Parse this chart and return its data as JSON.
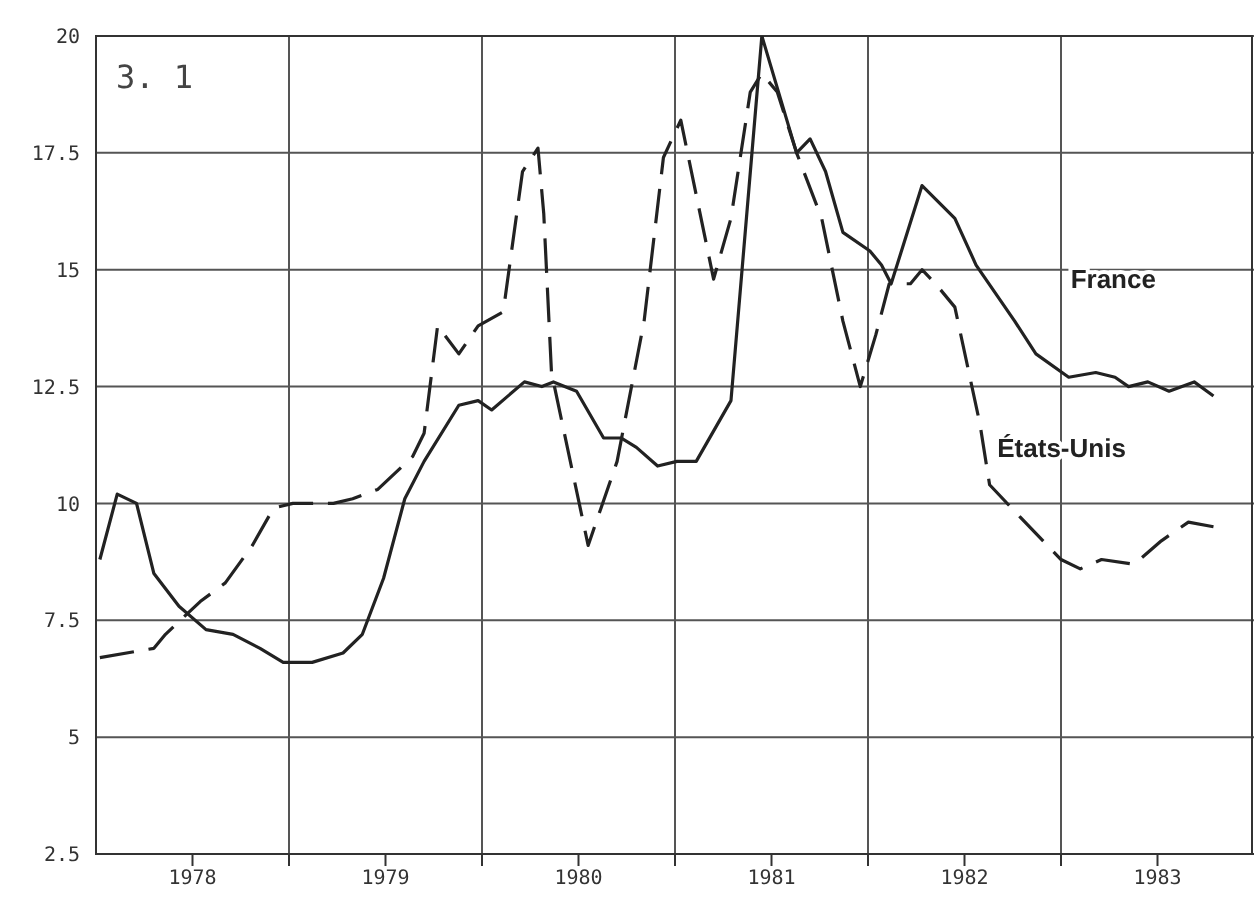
{
  "chart_data": {
    "type": "line",
    "annotations": [
      "3. 1"
    ],
    "xlim": [
      1978,
      1984
    ],
    "xticks": [
      {
        "value": 1978.5,
        "label": "1978"
      },
      {
        "value": 1979,
        "label": null
      },
      {
        "value": 1979.5,
        "label": "1979"
      },
      {
        "value": 1980,
        "label": null
      },
      {
        "value": 1980.5,
        "label": "1980"
      },
      {
        "value": 1981,
        "label": null
      },
      {
        "value": 1981.5,
        "label": "1981"
      },
      {
        "value": 1982,
        "label": null
      },
      {
        "value": 1982.5,
        "label": "1982"
      },
      {
        "value": 1983,
        "label": null
      },
      {
        "value": 1983.5,
        "label": "1983"
      }
    ],
    "ylim": [
      2.5,
      20
    ],
    "yticks": [
      2.5,
      5,
      7.5,
      10,
      12.5,
      15,
      17.5,
      20
    ],
    "grid": true,
    "series": [
      {
        "name": "France",
        "color": "#222222",
        "line_style": "solid",
        "x": [
          1978.02,
          1978.11,
          1978.21,
          1978.3,
          1978.43,
          1978.57,
          1978.71,
          1978.85,
          1978.97,
          1979.12,
          1979.28,
          1979.38,
          1979.49,
          1979.6,
          1979.7,
          1979.88,
          1979.98,
          1980.05,
          1980.22,
          1980.31,
          1980.37,
          1980.49,
          1980.63,
          1980.72,
          1980.8,
          1980.91,
          1981.01,
          1981.11,
          1981.29,
          1981.45,
          1981.63,
          1981.7,
          1981.78,
          1981.87,
          1982.01,
          1982.07,
          1982.12,
          1982.28,
          1982.45,
          1982.56,
          1982.76,
          1982.87,
          1983.04,
          1983.18,
          1983.28,
          1983.35,
          1983.45,
          1983.56,
          1983.69,
          1983.79
        ],
        "values": [
          8.8,
          10.2,
          10.0,
          8.5,
          7.8,
          7.3,
          7.2,
          6.9,
          6.6,
          6.6,
          6.8,
          7.2,
          8.4,
          10.1,
          10.9,
          12.1,
          12.2,
          12.0,
          12.6,
          12.5,
          12.6,
          12.4,
          11.4,
          11.4,
          11.2,
          10.8,
          10.9,
          10.9,
          12.2,
          20.0,
          17.5,
          17.8,
          17.1,
          15.8,
          15.4,
          15.1,
          14.7,
          16.8,
          16.1,
          15.1,
          13.9,
          13.2,
          12.7,
          12.8,
          12.7,
          12.5,
          12.6,
          12.4,
          12.6,
          12.3
        ]
      },
      {
        "name": "États-Unis",
        "color": "#222222",
        "line_style": "dashed",
        "x": [
          1978.02,
          1978.3,
          1978.36,
          1978.54,
          1978.67,
          1978.81,
          1978.92,
          1979.02,
          1979.23,
          1979.33,
          1979.46,
          1979.64,
          1979.7,
          1979.77,
          1979.88,
          1979.98,
          1980.11,
          1980.21,
          1980.29,
          1980.32,
          1980.36,
          1980.55,
          1980.7,
          1980.84,
          1980.94,
          1981.03,
          1981.11,
          1981.2,
          1981.29,
          1981.39,
          1981.45,
          1981.53,
          1981.63,
          1981.76,
          1981.87,
          1981.96,
          1982.04,
          1982.11,
          1982.22,
          1982.28,
          1982.35,
          1982.45,
          1982.58,
          1982.63,
          1982.79,
          1983.0,
          1983.1,
          1983.21,
          1983.38,
          1983.52,
          1983.66,
          1983.79
        ],
        "values": [
          6.7,
          6.9,
          7.2,
          7.9,
          8.3,
          9.1,
          9.9,
          10.0,
          10.0,
          10.1,
          10.3,
          11.0,
          11.5,
          13.8,
          13.2,
          13.8,
          14.1,
          17.1,
          17.6,
          16.2,
          12.8,
          9.1,
          10.9,
          13.9,
          17.4,
          18.2,
          16.6,
          14.8,
          16.1,
          18.8,
          19.2,
          18.8,
          17.5,
          16.1,
          13.9,
          12.5,
          13.6,
          14.7,
          14.7,
          15.0,
          14.7,
          14.2,
          11.7,
          10.4,
          9.7,
          8.8,
          8.6,
          8.8,
          8.7,
          9.2,
          9.6,
          9.5
        ]
      }
    ]
  }
}
